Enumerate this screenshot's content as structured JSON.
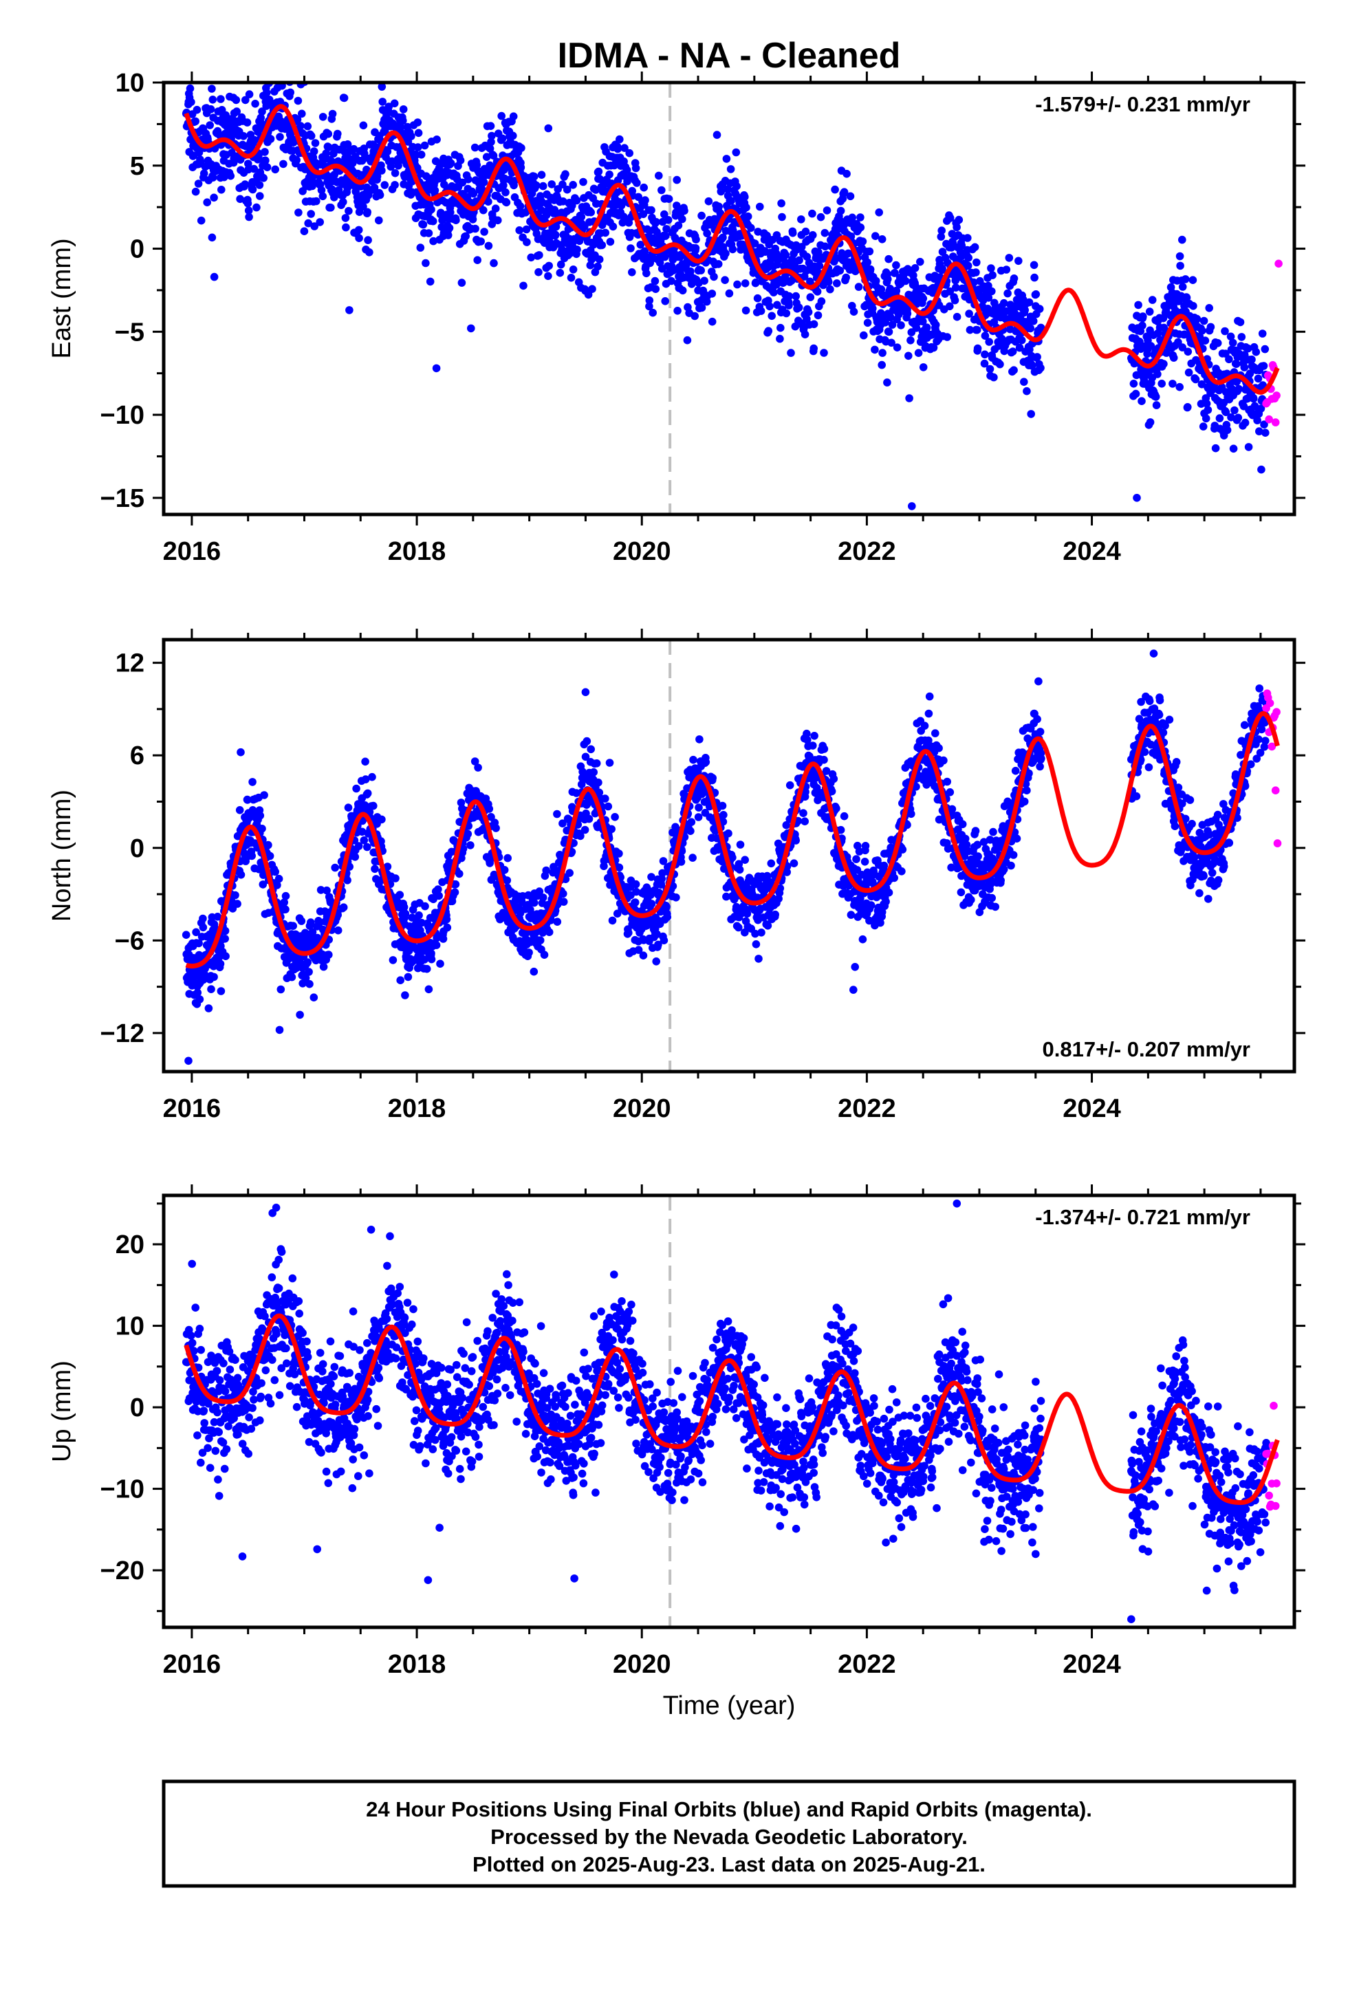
{
  "title": "IDMA  - NA - Cleaned",
  "x_axis_label": "Time (year)",
  "footer": {
    "line1": "24 Hour Positions Using Final Orbits (blue) and Rapid Orbits (magenta).",
    "line2": "Processed by the Nevada Geodetic Laboratory.",
    "line3": "Plotted on 2025-Aug-23. Last data on 2025-Aug-21."
  },
  "colors": {
    "final_orbits": "#0000ff",
    "rapid_orbits": "#ff00ff",
    "model_fit": "#ff0000",
    "equipment_change": "#c0c0c0",
    "frame": "#000000"
  },
  "chart_data": [
    {
      "type": "scatter",
      "component": "East",
      "ylabel": "East (mm)",
      "xlim": [
        2015.75,
        2025.8
      ],
      "ylim": [
        -16,
        10
      ],
      "xticks": [
        2016,
        2018,
        2020,
        2022,
        2024
      ],
      "xtick_labels": [
        "2016",
        "2018",
        "2020",
        "2022",
        "2024"
      ],
      "yticks": [
        10,
        5,
        0,
        -5,
        -10,
        -15
      ],
      "ytick_labels": [
        "10",
        "5",
        "0",
        "−5",
        "−10",
        "−15"
      ],
      "rate_text": "-1.579+/- 0.231 mm/yr",
      "rate_position": "top-right",
      "equipment_change_year": 2020.25,
      "model": {
        "offset": 1.2,
        "trend": -1.579,
        "ref_year": 2020.0,
        "annual_amp": 1.4,
        "annual_peak": 2015.8,
        "semiannual_amp": 0.9,
        "semiannual_peak": 2015.8,
        "jump": 0
      },
      "series": [
        {
          "name": "Final Orbits",
          "color": "#0000ff",
          "segments": [
            [
              2015.95,
              2023.55
            ],
            [
              2024.35,
              2025.55
            ]
          ],
          "scatter": 1.6
        },
        {
          "name": "Rapid Orbits",
          "color": "#ff00ff",
          "segments": [
            [
              2025.55,
              2025.65
            ]
          ],
          "scatter": 1.4
        }
      ],
      "outliers": [
        [
          2016.2,
          -1.7
        ],
        [
          2017.4,
          -3.7
        ],
        [
          2025.66,
          -0.9
        ],
        [
          2022.4,
          -15.5
        ],
        [
          2024.4,
          -15.0
        ]
      ]
    },
    {
      "type": "scatter",
      "component": "North",
      "ylabel": "North (mm)",
      "xlim": [
        2015.75,
        2025.8
      ],
      "ylim": [
        -14.5,
        13.5
      ],
      "xticks": [
        2016,
        2018,
        2020,
        2022,
        2024
      ],
      "xtick_labels": [
        "2016",
        "2018",
        "2020",
        "2022",
        "2024"
      ],
      "yticks": [
        12,
        6,
        0,
        -6,
        -12
      ],
      "ytick_labels": [
        "12",
        "6",
        "0",
        "−6",
        "−12"
      ],
      "rate_text": "0.817+/- 0.207 mm/yr",
      "rate_position": "bottom-right",
      "equipment_change_year": 2020.25,
      "model": {
        "offset": -0.9,
        "trend": 0.817,
        "ref_year": 2020.0,
        "annual_amp": 4.3,
        "annual_peak": 2015.52,
        "semiannual_amp": 0.8,
        "semiannual_peak": 2015.52,
        "jump": 0
      },
      "series": [
        {
          "name": "Final Orbits",
          "color": "#0000ff",
          "segments": [
            [
              2015.95,
              2023.55
            ],
            [
              2024.35,
              2025.55
            ]
          ],
          "scatter": 1.2
        },
        {
          "name": "Rapid Orbits",
          "color": "#ff00ff",
          "segments": [
            [
              2025.55,
              2025.65
            ]
          ],
          "scatter": 1.5
        }
      ],
      "outliers": [
        [
          2015.97,
          -13.8
        ],
        [
          2016.78,
          -11.8
        ],
        [
          2019.5,
          10.1
        ],
        [
          2024.55,
          12.6
        ],
        [
          2021.88,
          -9.2
        ],
        [
          2025.65,
          0.3
        ]
      ]
    },
    {
      "type": "scatter",
      "component": "Up",
      "ylabel": "Up (mm)",
      "xlim": [
        2015.75,
        2025.8
      ],
      "ylim": [
        -27,
        26
      ],
      "xticks": [
        2016,
        2018,
        2020,
        2022,
        2024
      ],
      "xtick_labels": [
        "2016",
        "2018",
        "2020",
        "2022",
        "2024"
      ],
      "yticks": [
        20,
        10,
        0,
        -10,
        -20
      ],
      "ytick_labels": [
        "20",
        "10",
        "0",
        "−10",
        "−20"
      ],
      "rate_text": "-1.374+/- 0.721 mm/yr",
      "rate_position": "top-right",
      "equipment_change_year": 2020.25,
      "model": {
        "offset": 0.0,
        "trend": -1.374,
        "ref_year": 2020.0,
        "annual_amp": 5.6,
        "annual_peak": 2015.78,
        "semiannual_amp": 1.2,
        "semiannual_peak": 2015.78,
        "jump": 0
      },
      "series": [
        {
          "name": "Final Orbits",
          "color": "#0000ff",
          "segments": [
            [
              2015.95,
              2023.55
            ],
            [
              2024.35,
              2025.55
            ]
          ],
          "scatter": 3.6
        },
        {
          "name": "Rapid Orbits",
          "color": "#ff00ff",
          "segments": [
            [
              2025.55,
              2025.65
            ]
          ],
          "scatter": 3.5
        }
      ],
      "outliers": [
        [
          2016.75,
          24.5
        ],
        [
          2022.8,
          25.0
        ],
        [
          2024.35,
          -26.0
        ],
        [
          2019.4,
          -21.0
        ],
        [
          2018.1,
          -21.2
        ],
        [
          2016.45,
          -18.3
        ],
        [
          2023.5,
          -18.0
        ]
      ]
    }
  ]
}
